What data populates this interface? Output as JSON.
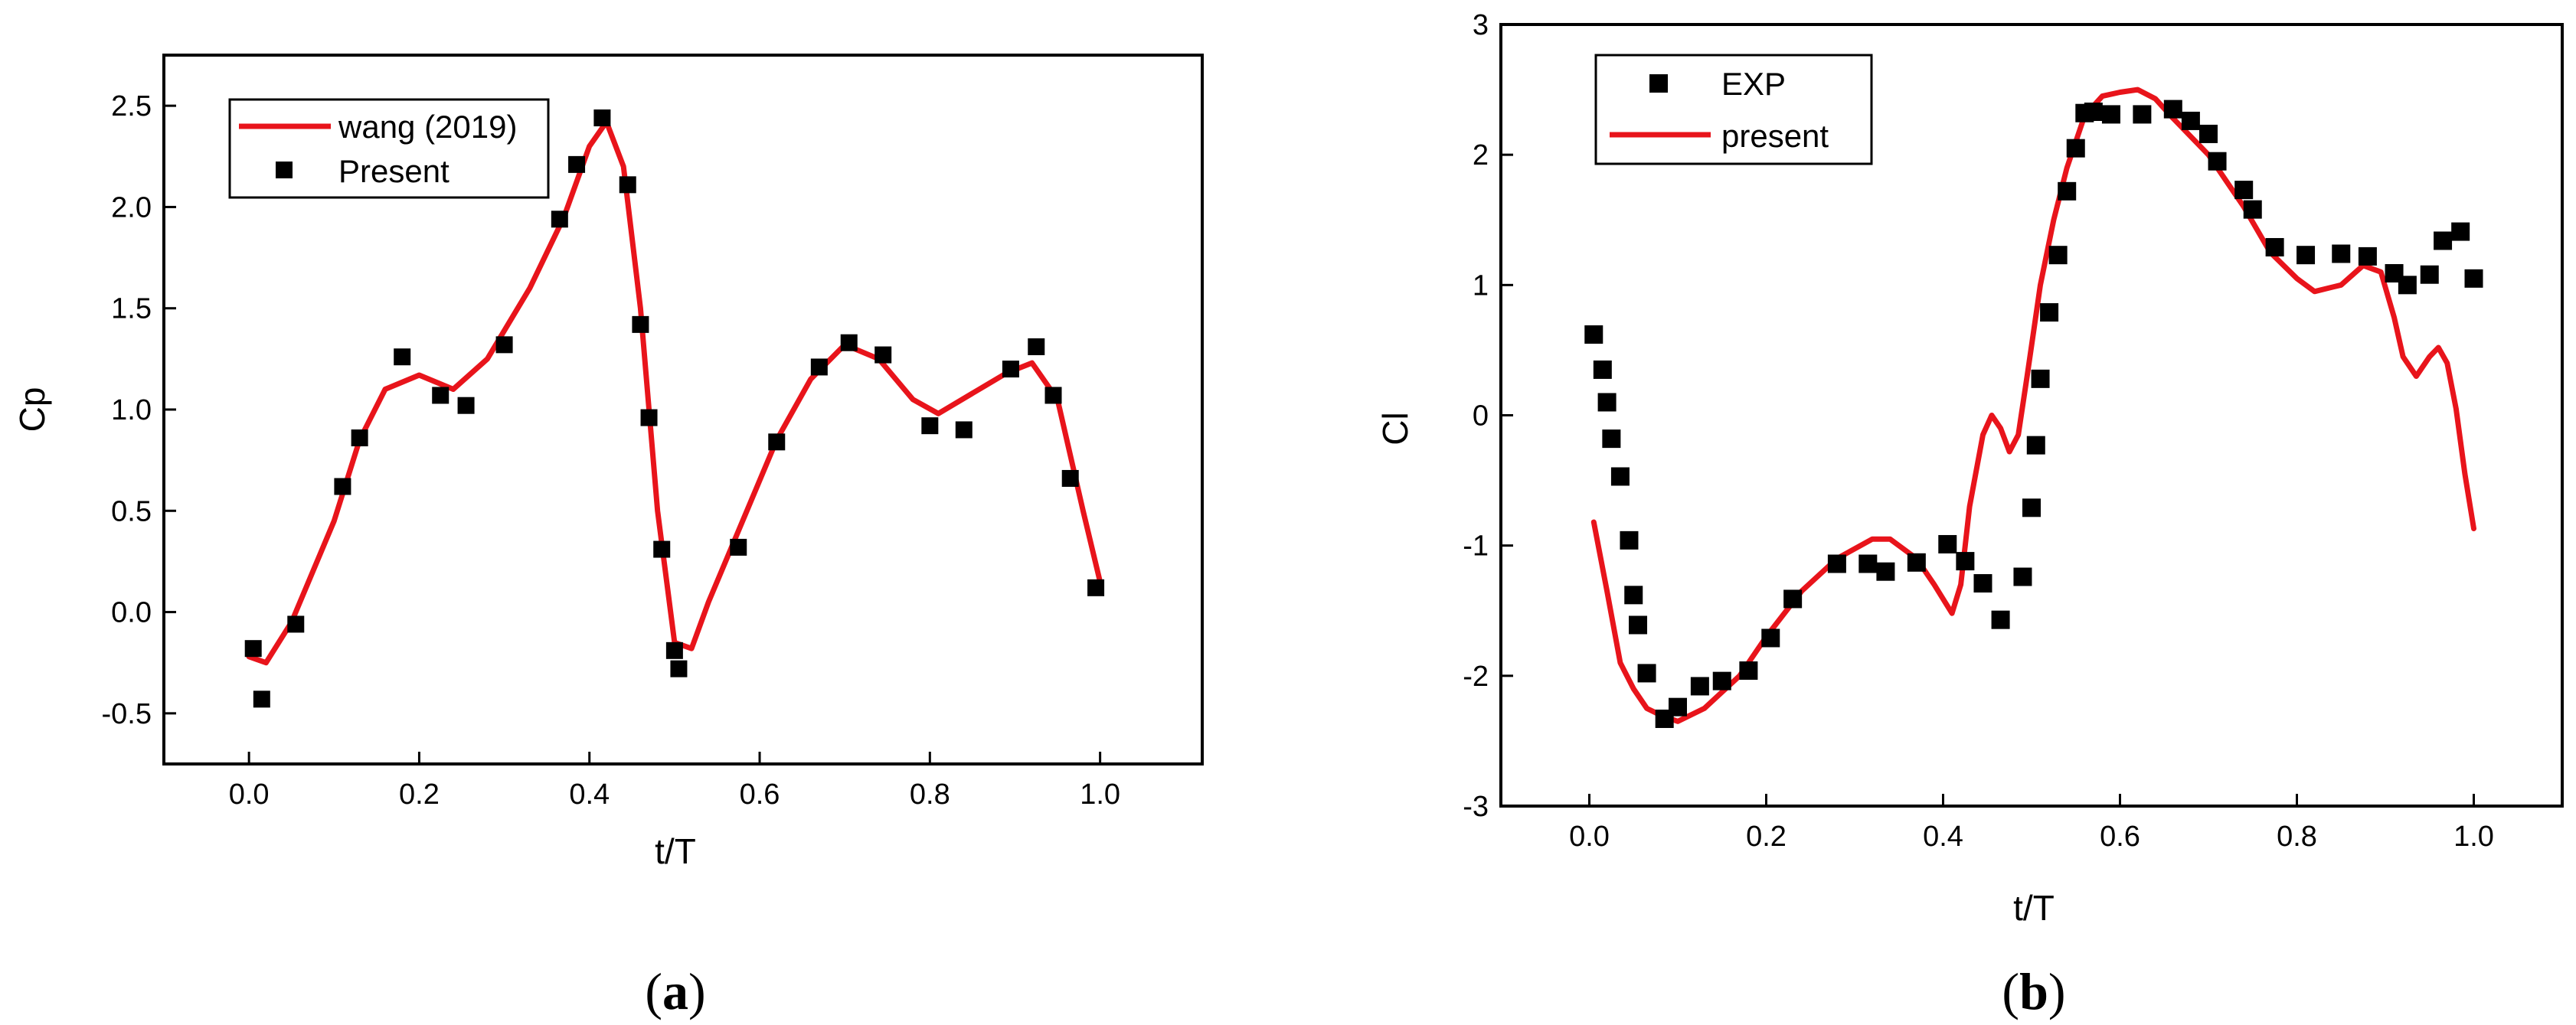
{
  "chart_data": [
    {
      "type": "line+scatter",
      "panel_label_open": "(",
      "panel_label": "a",
      "panel_label_close": ")",
      "xlabel": "t/T",
      "ylabel": "Cp",
      "xlim": [
        -0.1,
        1.12
      ],
      "ylim": [
        -0.75,
        2.75
      ],
      "xticks": [
        0.0,
        0.2,
        0.4,
        0.6,
        0.8,
        1.0
      ],
      "xtick_labels": [
        "0.0",
        "0.2",
        "0.4",
        "0.6",
        "0.8",
        "1.0"
      ],
      "yticks": [
        -0.5,
        0.0,
        0.5,
        1.0,
        1.5,
        2.0,
        2.5
      ],
      "ytick_labels": [
        "-0.5",
        "0.0",
        "0.5",
        "1.0",
        "1.5",
        "2.0",
        "2.5"
      ],
      "legend_position": "top-left",
      "series": [
        {
          "name": "wang (2019)",
          "kind": "line",
          "color": "#e8141b",
          "x": [
            0.0,
            0.02,
            0.05,
            0.1,
            0.13,
            0.16,
            0.2,
            0.24,
            0.28,
            0.33,
            0.37,
            0.4,
            0.42,
            0.44,
            0.46,
            0.48,
            0.5,
            0.52,
            0.54,
            0.58,
            0.62,
            0.66,
            0.7,
            0.74,
            0.78,
            0.81,
            0.85,
            0.89,
            0.92,
            0.95,
            0.98,
            1.0
          ],
          "y": [
            -0.22,
            -0.25,
            -0.05,
            0.45,
            0.85,
            1.1,
            1.17,
            1.1,
            1.25,
            1.6,
            1.95,
            2.3,
            2.42,
            2.2,
            1.5,
            0.5,
            -0.15,
            -0.18,
            0.05,
            0.45,
            0.85,
            1.15,
            1.32,
            1.25,
            1.05,
            0.98,
            1.08,
            1.18,
            1.23,
            1.05,
            0.5,
            0.15
          ]
        },
        {
          "name": "Present",
          "kind": "scatter",
          "color": "#000000",
          "x": [
            0.005,
            0.015,
            0.055,
            0.11,
            0.13,
            0.18,
            0.225,
            0.255,
            0.3,
            0.365,
            0.385,
            0.415,
            0.445,
            0.46,
            0.47,
            0.485,
            0.5,
            0.505,
            0.575,
            0.62,
            0.67,
            0.705,
            0.745,
            0.8,
            0.84,
            0.895,
            0.925,
            0.945,
            0.965,
            0.995
          ],
          "y": [
            -0.18,
            -0.43,
            -0.06,
            0.62,
            0.86,
            1.26,
            1.07,
            1.02,
            1.32,
            1.94,
            2.21,
            2.44,
            2.11,
            1.42,
            0.96,
            0.31,
            -0.19,
            -0.28,
            0.32,
            0.84,
            1.21,
            1.33,
            1.27,
            0.92,
            0.9,
            1.2,
            1.31,
            1.07,
            0.66,
            0.12
          ]
        }
      ]
    },
    {
      "type": "line+scatter",
      "panel_label_open": "(",
      "panel_label": "b",
      "panel_label_close": ")",
      "xlabel": "t/T",
      "ylabel": "Cl",
      "xlim": [
        -0.1,
        1.1
      ],
      "ylim": [
        -3,
        3
      ],
      "xticks": [
        0.0,
        0.2,
        0.4,
        0.6,
        0.8,
        1.0
      ],
      "xtick_labels": [
        "0.0",
        "0.2",
        "0.4",
        "0.6",
        "0.8",
        "1.0"
      ],
      "yticks": [
        -3,
        -2,
        -1,
        0,
        1,
        2,
        3
      ],
      "ytick_labels": [
        "-3",
        "-2",
        "-1",
        "0",
        "1",
        "2",
        "3"
      ],
      "legend_position": "top-left",
      "series": [
        {
          "name": "EXP",
          "kind": "scatter",
          "color": "#000000",
          "x": [
            0.005,
            0.015,
            0.02,
            0.025,
            0.035,
            0.045,
            0.05,
            0.055,
            0.065,
            0.085,
            0.1,
            0.125,
            0.15,
            0.18,
            0.205,
            0.23,
            0.28,
            0.315,
            0.335,
            0.37,
            0.405,
            0.425,
            0.445,
            0.465,
            0.49,
            0.5,
            0.505,
            0.51,
            0.52,
            0.53,
            0.54,
            0.55,
            0.56,
            0.57,
            0.59,
            0.625,
            0.66,
            0.68,
            0.7,
            0.71,
            0.74,
            0.75,
            0.775,
            0.81,
            0.85,
            0.88,
            0.91,
            0.925,
            0.95,
            0.965,
            0.985,
            1.0
          ],
          "y": [
            0.62,
            0.35,
            0.1,
            -0.18,
            -0.47,
            -0.96,
            -1.38,
            -1.61,
            -1.98,
            -2.33,
            -2.24,
            -2.08,
            -2.04,
            -1.96,
            -1.71,
            -1.41,
            -1.14,
            -1.14,
            -1.2,
            -1.13,
            -0.99,
            -1.12,
            -1.29,
            -1.57,
            -1.24,
            -0.71,
            -0.23,
            0.28,
            0.79,
            1.23,
            1.72,
            2.05,
            2.32,
            2.33,
            2.31,
            2.31,
            2.35,
            2.26,
            2.16,
            1.95,
            1.73,
            1.58,
            1.29,
            1.23,
            1.24,
            1.22,
            1.09,
            1.0,
            1.08,
            1.34,
            1.41,
            1.05
          ]
        },
        {
          "name": "present",
          "kind": "line",
          "color": "#e8141b",
          "x": [
            0.005,
            0.02,
            0.035,
            0.05,
            0.065,
            0.08,
            0.1,
            0.13,
            0.17,
            0.2,
            0.24,
            0.28,
            0.32,
            0.34,
            0.37,
            0.39,
            0.41,
            0.42,
            0.43,
            0.445,
            0.455,
            0.465,
            0.475,
            0.485,
            0.495,
            0.51,
            0.525,
            0.54,
            0.56,
            0.58,
            0.6,
            0.62,
            0.64,
            0.66,
            0.7,
            0.74,
            0.77,
            0.8,
            0.82,
            0.85,
            0.875,
            0.895,
            0.91,
            0.92,
            0.935,
            0.95,
            0.96,
            0.97,
            0.98,
            0.99,
            1.0
          ],
          "y": [
            -0.82,
            -1.35,
            -1.9,
            -2.1,
            -2.25,
            -2.3,
            -2.35,
            -2.25,
            -2.0,
            -1.7,
            -1.35,
            -1.1,
            -0.95,
            -0.95,
            -1.1,
            -1.3,
            -1.52,
            -1.3,
            -0.7,
            -0.15,
            0.0,
            -0.1,
            -0.28,
            -0.15,
            0.3,
            1.0,
            1.5,
            1.9,
            2.3,
            2.45,
            2.48,
            2.5,
            2.43,
            2.28,
            2.0,
            1.6,
            1.25,
            1.05,
            0.95,
            1.0,
            1.15,
            1.1,
            0.75,
            0.45,
            0.3,
            0.45,
            0.52,
            0.4,
            0.05,
            -0.45,
            -0.87
          ]
        }
      ]
    }
  ]
}
